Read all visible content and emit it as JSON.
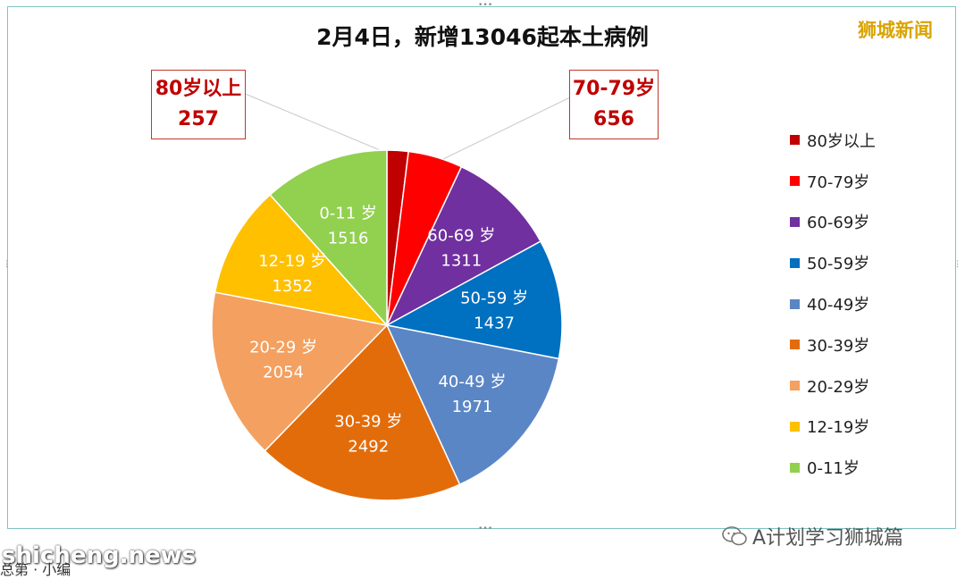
{
  "chart_data": {
    "type": "pie",
    "title": "2月4日，新增13046起本土病例",
    "start_angle_deg": 0,
    "direction": "clockwise",
    "legend_position": "right",
    "slices": [
      {
        "label": "80岁以上",
        "value": 257,
        "color": "#c00000",
        "show_label": false
      },
      {
        "label": "70-79岁",
        "value": 656,
        "color": "#ff0000",
        "show_label": false
      },
      {
        "label": "60-69岁",
        "value": 1311,
        "color": "#7030a0",
        "show_label": true
      },
      {
        "label": "50-59岁",
        "value": 1437,
        "color": "#0070c0",
        "show_label": true
      },
      {
        "label": "40-49岁",
        "value": 1971,
        "color": "#5b86c5",
        "show_label": true
      },
      {
        "label": "30-39岁",
        "value": 2492,
        "color": "#e36c0a",
        "show_label": true
      },
      {
        "label": "20-29岁",
        "value": 2054,
        "color": "#f4a060",
        "show_label": true
      },
      {
        "label": "12-19岁",
        "value": 1352,
        "color": "#ffc000",
        "show_label": true
      },
      {
        "label": "0-11岁",
        "value": 1516,
        "color": "#92d050",
        "show_label": true
      }
    ],
    "slice_label_text": {
      "60-69岁": "60-69 岁",
      "50-59岁": "50-59 岁",
      "40-49岁": "40-49 岁",
      "30-39岁": "30-39 岁",
      "20-29岁": "20-29 岁",
      "12-19岁": "12-19 岁",
      "0-11岁": "0-11 岁"
    },
    "callouts": [
      {
        "slice": "80岁以上",
        "label": "80岁以上",
        "value": "257"
      },
      {
        "slice": "70-79岁",
        "label": "70-79岁",
        "value": "656"
      }
    ]
  },
  "brand": "狮城新闻",
  "watermark_left": "shicheng.news",
  "sublabel": "总第 · 小编",
  "watermark_right": "A计划学习狮城篇",
  "icons": {
    "watermark": "wechat-icon"
  }
}
